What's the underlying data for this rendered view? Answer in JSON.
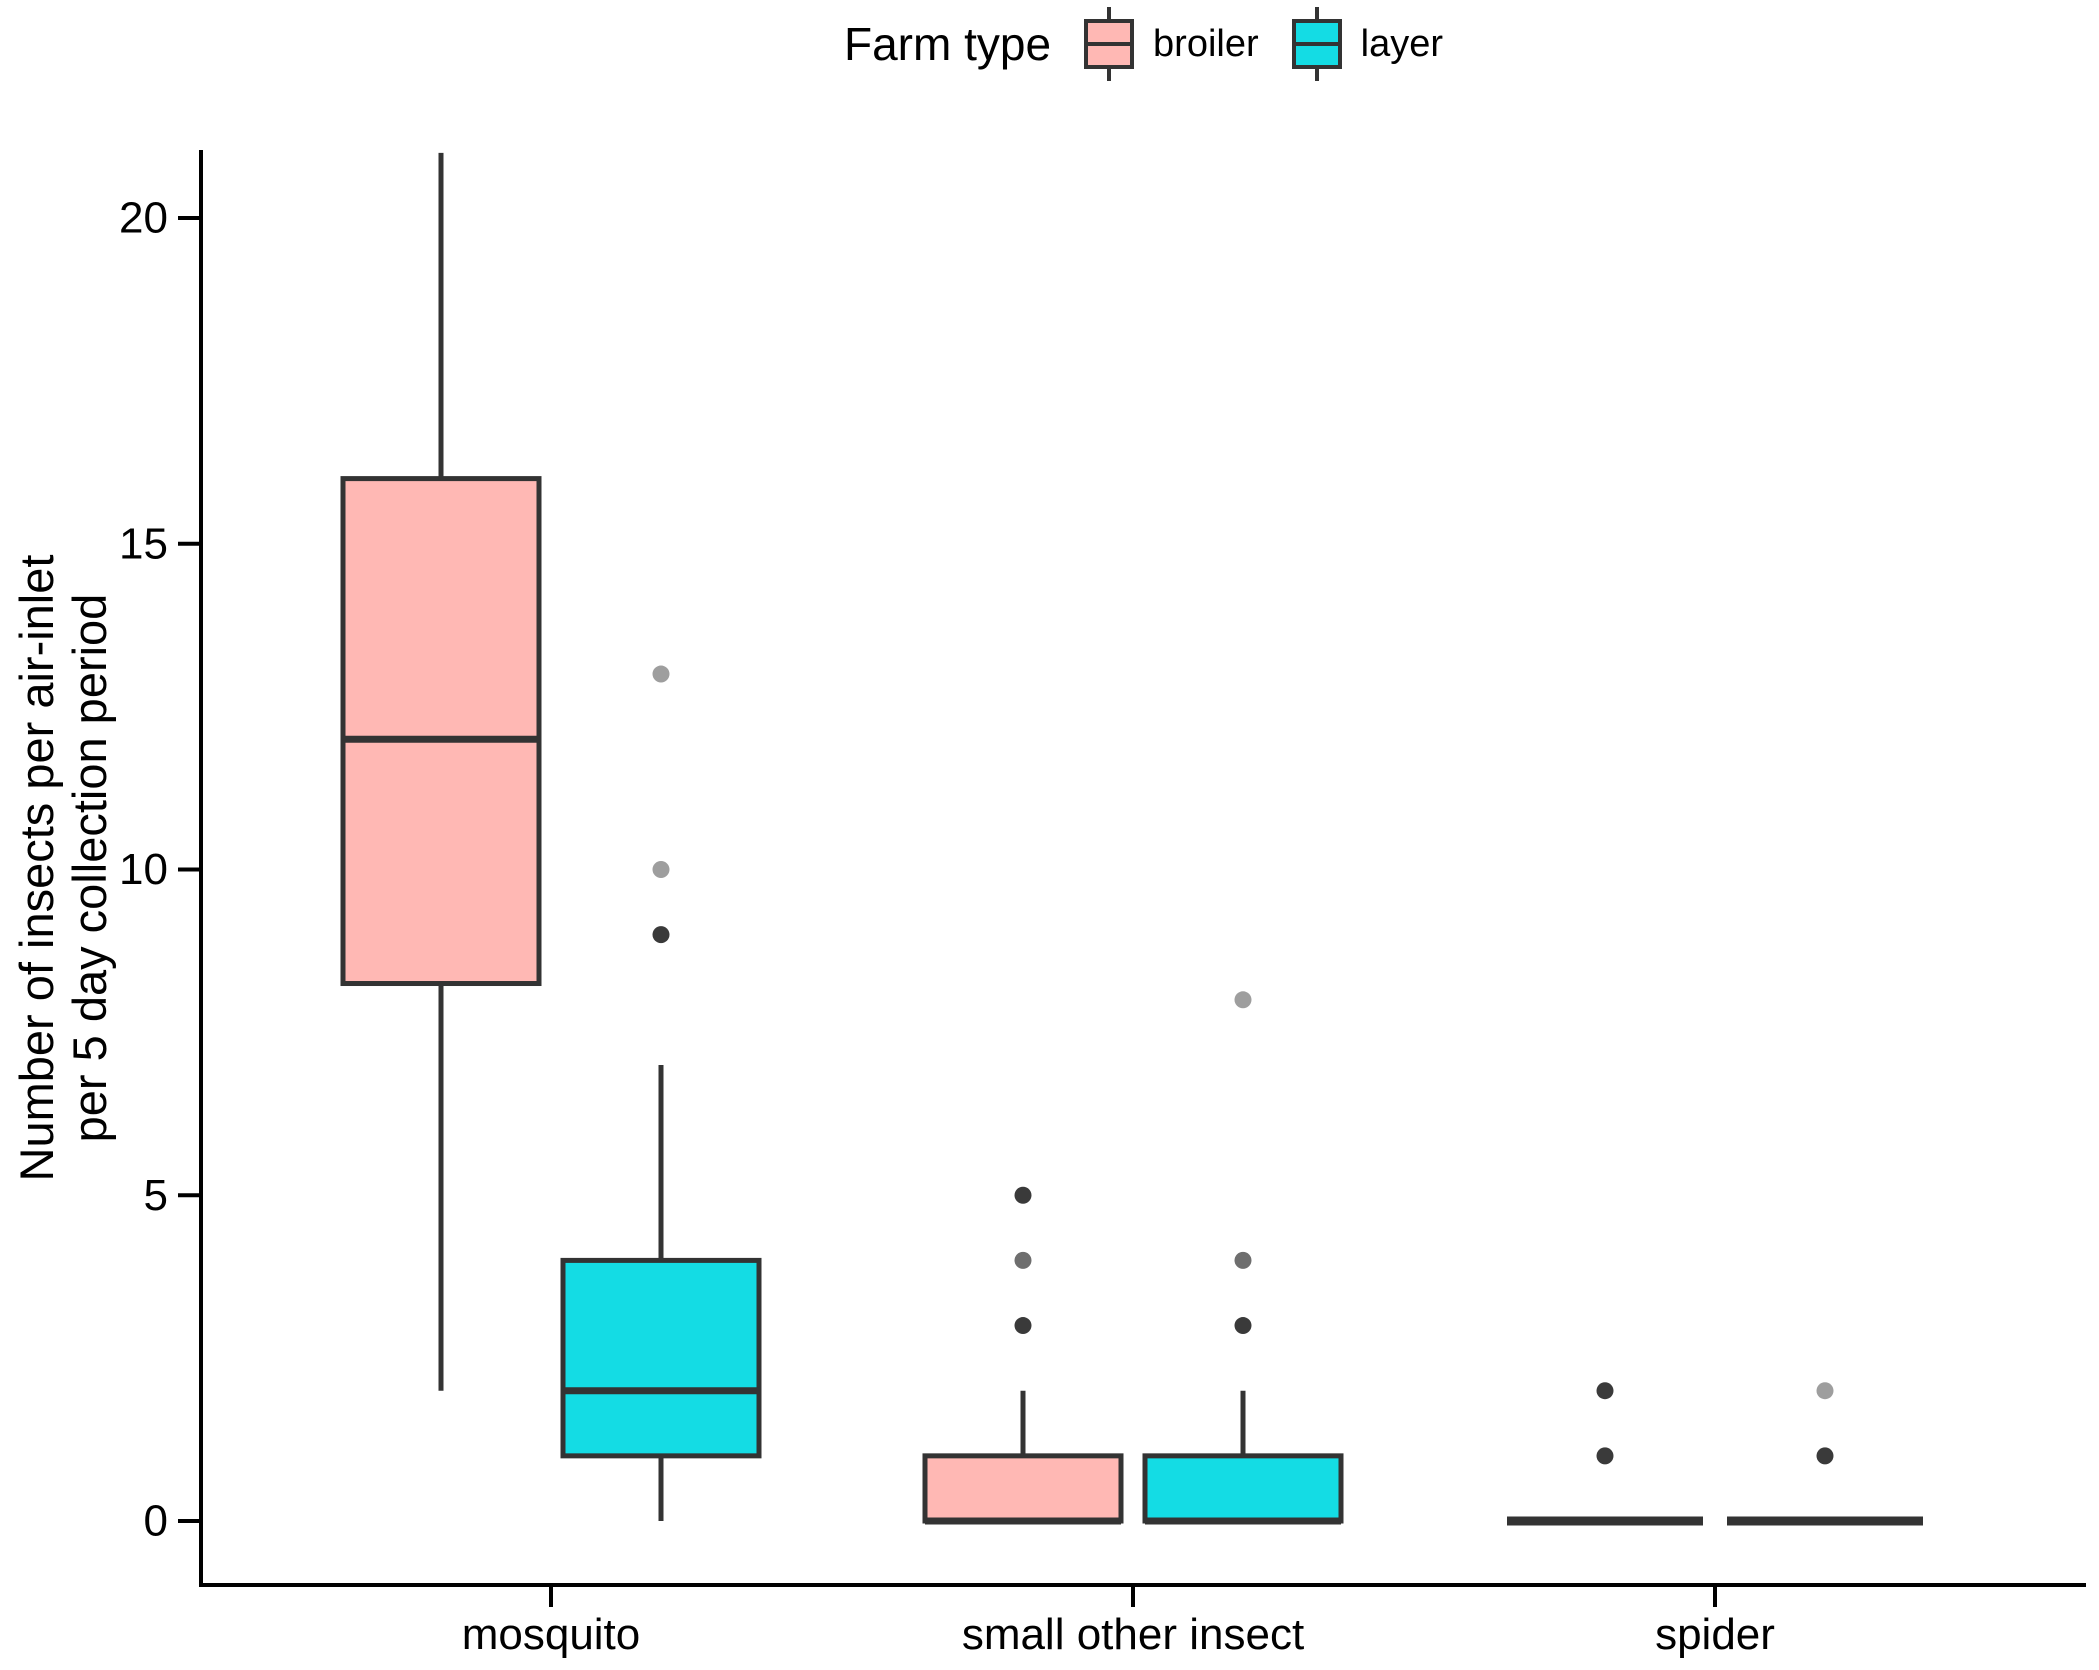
{
  "legend": {
    "title": "Farm type",
    "items": [
      {
        "label": "broiler",
        "color": "#FFB8B4"
      },
      {
        "label": "layer",
        "color": "#14DCE4"
      }
    ]
  },
  "y_axis": {
    "title_lines": [
      "Number of insects per air-inlet",
      "per 5 day collection period"
    ],
    "ticks": [
      0,
      5,
      10,
      15,
      20
    ]
  },
  "x_axis": {
    "categories": [
      "mosquito",
      "small other insect",
      "spider"
    ]
  },
  "colors": {
    "broiler_fill": "#FFB8B4",
    "layer_fill": "#14DCE4",
    "box_border": "#333333",
    "axis": "#000000",
    "outlier_shades": {
      "light": "#9E9E9E",
      "medium": "#6E6E6E",
      "dark": "#3A3A3A"
    }
  },
  "chart_data": {
    "type": "boxplot",
    "title": "",
    "xlabel": "",
    "ylabel": "Number of insects per air-inlet per 5 day collection period",
    "ylim": [
      0,
      21
    ],
    "grid": false,
    "legend_position": "top",
    "categories": [
      "mosquito",
      "small other insect",
      "spider"
    ],
    "series": [
      {
        "name": "broiler",
        "color": "#FFB8B4",
        "boxes": [
          {
            "category": "mosquito",
            "min": 2,
            "q1": 8.25,
            "median": 12,
            "q3": 16,
            "max": 21,
            "outliers": []
          },
          {
            "category": "small other insect",
            "min": 0,
            "q1": 0,
            "median": 0,
            "q3": 1,
            "max": 2,
            "outliers": [
              {
                "value": 5,
                "shade": "dark"
              },
              {
                "value": 4,
                "shade": "medium"
              },
              {
                "value": 3,
                "shade": "dark"
              }
            ]
          },
          {
            "category": "spider",
            "min": 0,
            "q1": 0,
            "median": 0,
            "q3": 0,
            "max": 0,
            "outliers": [
              {
                "value": 2,
                "shade": "dark"
              },
              {
                "value": 1,
                "shade": "dark"
              }
            ]
          }
        ]
      },
      {
        "name": "layer",
        "color": "#14DCE4",
        "boxes": [
          {
            "category": "mosquito",
            "min": 0,
            "q1": 1,
            "median": 2,
            "q3": 4,
            "max": 7,
            "outliers": [
              {
                "value": 13,
                "shade": "light"
              },
              {
                "value": 10,
                "shade": "light"
              },
              {
                "value": 9,
                "shade": "dark"
              }
            ]
          },
          {
            "category": "small other insect",
            "min": 0,
            "q1": 0,
            "median": 0,
            "q3": 1,
            "max": 2,
            "outliers": [
              {
                "value": 8,
                "shade": "light"
              },
              {
                "value": 4,
                "shade": "medium"
              },
              {
                "value": 3,
                "shade": "dark"
              }
            ]
          },
          {
            "category": "spider",
            "min": 0,
            "q1": 0,
            "median": 0,
            "q3": 0,
            "max": 0,
            "outliers": [
              {
                "value": 2,
                "shade": "light"
              },
              {
                "value": 1,
                "shade": "dark"
              }
            ]
          }
        ]
      }
    ]
  }
}
